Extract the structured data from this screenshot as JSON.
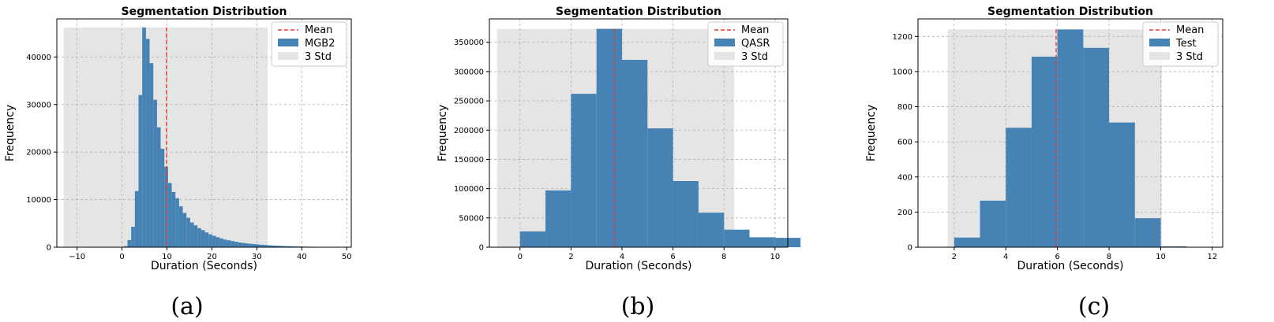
{
  "captions": [
    "(a)",
    "(b)",
    "(c)"
  ],
  "colors": {
    "bar": "#4682b4",
    "std_band": "#e5e5e5",
    "mean_line": "#e8392f",
    "grid": "#b0b0b0"
  },
  "chart_data": [
    {
      "type": "bar",
      "title": "Segmentation Distribution",
      "xlabel": "Duration (Seconds)",
      "ylabel": "Frequency",
      "xlim": [
        -14.5,
        51
      ],
      "ylim": [
        0,
        48000
      ],
      "xticks": [
        -10,
        0,
        10,
        20,
        30,
        40,
        50
      ],
      "yticks": [
        0,
        10000,
        20000,
        30000,
        40000
      ],
      "grid": true,
      "legend_position": "top-right",
      "legend": [
        "Mean",
        "MGB2",
        "3 Std"
      ],
      "mean": 9.9,
      "std_band": [
        -13,
        32.4
      ],
      "bin_start": 0.4,
      "bin_width": 0.82,
      "values": [
        200,
        1500,
        4300,
        11800,
        32000,
        46200,
        43800,
        38700,
        31000,
        25200,
        20700,
        16900,
        13500,
        11600,
        10300,
        8600,
        7200,
        6200,
        5200,
        4600,
        4000,
        3600,
        3100,
        2700,
        2400,
        2100,
        1850,
        1600,
        1450,
        1300,
        1150,
        1000,
        900,
        800,
        720,
        650,
        580,
        520,
        460,
        400,
        360,
        320,
        290,
        260,
        230,
        200,
        180,
        160,
        140,
        120,
        100,
        90,
        80,
        70,
        60,
        50,
        40,
        30,
        25,
        20
      ]
    },
    {
      "type": "bar",
      "title": "Segmentation Distribution",
      "xlabel": "Duration (Seconds)",
      "ylabel": "Frequency",
      "xlim": [
        -1.2,
        10.5
      ],
      "ylim": [
        0,
        390000
      ],
      "xticks": [
        0,
        2,
        4,
        6,
        8,
        10
      ],
      "yticks": [
        0,
        50000,
        100000,
        150000,
        200000,
        250000,
        300000,
        350000
      ],
      "grid": true,
      "legend_position": "top-right",
      "legend": [
        "Mean",
        "QASR",
        "3 Std"
      ],
      "mean": 3.7,
      "std_band": [
        -0.9,
        8.4
      ],
      "bin_start": 0,
      "bin_width": 1,
      "values": [
        27000,
        97000,
        262000,
        373000,
        320000,
        203000,
        113000,
        59000,
        30000,
        17000,
        16000
      ]
    },
    {
      "type": "bar",
      "title": "Segmentation Distribution",
      "xlabel": "Duration (Seconds)",
      "ylabel": "Frequency",
      "xlim": [
        0.6,
        12.4
      ],
      "ylim": [
        0,
        1300
      ],
      "xticks": [
        2,
        4,
        6,
        8,
        10,
        12
      ],
      "yticks": [
        0,
        200,
        400,
        600,
        800,
        1000,
        1200
      ],
      "grid": true,
      "legend_position": "top-right",
      "legend": [
        "Mean",
        "Test",
        "3 Std"
      ],
      "mean": 5.95,
      "std_band": [
        1.75,
        10.05
      ],
      "bin_start": 2,
      "bin_width": 1,
      "values": [
        55,
        265,
        680,
        1085,
        1240,
        1135,
        710,
        165,
        5
      ]
    }
  ]
}
